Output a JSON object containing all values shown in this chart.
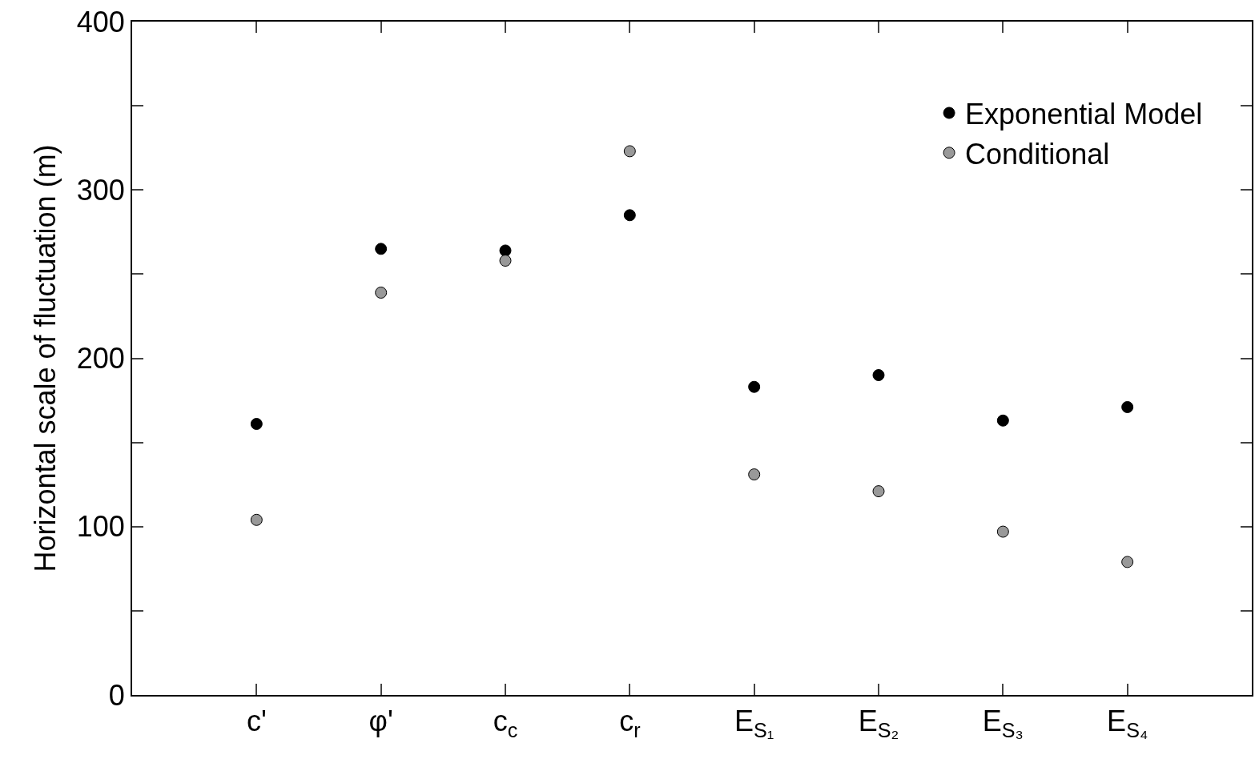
{
  "chart_data": {
    "type": "scatter",
    "ylabel": "Horizontal scale of fluctuation (m)",
    "categories": [
      "c'",
      "φ'",
      "c$_{c}$",
      "c$_{r}$",
      "E$_{S₁}$",
      "E$_{S₂}$",
      "E$_{S₃}$",
      "E$_{S₄}$"
    ],
    "series": [
      {
        "name": "Exponential Model",
        "color": "#000000",
        "values": [
          161,
          265,
          264,
          285,
          183,
          190,
          163,
          171
        ]
      },
      {
        "name": "Conditional",
        "color": "#999999",
        "values": [
          104,
          239,
          258,
          323,
          131,
          121,
          97,
          79
        ]
      }
    ],
    "ylim": [
      0,
      400
    ],
    "yticks": [
      0,
      {
        "value": 50,
        "label": null
      },
      100,
      {
        "value": 150,
        "label": null
      },
      200,
      {
        "value": 250,
        "label": null
      },
      300,
      {
        "value": 350,
        "label": null
      },
      400
    ],
    "marker": "circle",
    "legend": "top right"
  }
}
